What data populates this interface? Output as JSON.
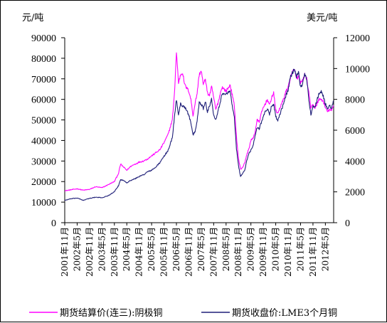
{
  "chart_data": {
    "type": "line",
    "left_axis_unit": "元/吨",
    "right_axis_unit": "美元/吨",
    "y_left": {
      "min": 0,
      "max": 90000,
      "ticks": [
        0,
        10000,
        20000,
        30000,
        40000,
        50000,
        60000,
        70000,
        80000,
        90000
      ]
    },
    "y_right": {
      "min": 0,
      "max": 12000,
      "ticks": [
        0,
        2000,
        4000,
        6000,
        8000,
        10000,
        12000
      ]
    },
    "x_range": [
      "2001-11",
      "2012-09"
    ],
    "x_ticks": [
      "2001年11月",
      "2002年5月",
      "2002年11月",
      "2003年5月",
      "2003年11月",
      "2004年5月",
      "2004年11月",
      "2005年5月",
      "2005年11月",
      "2006年5月",
      "2006年11月",
      "2007年5月",
      "2007年11月",
      "2008年5月",
      "2008年11月",
      "2009年5月",
      "2009年11月",
      "2010年5月",
      "2010年11月",
      "2011年5月",
      "2011年11月",
      "2012年5月"
    ],
    "legend_position": "bottom",
    "grid": false,
    "series": [
      {
        "name": "期货结算价(连三):阴极铜",
        "axis": "left",
        "color": "#ff00ff",
        "points": [
          [
            "2001-11",
            15500
          ],
          [
            "2002-02",
            16000
          ],
          [
            "2002-05",
            16500
          ],
          [
            "2002-08",
            15800
          ],
          [
            "2002-11",
            16200
          ],
          [
            "2003-02",
            17500
          ],
          [
            "2003-05",
            17000
          ],
          [
            "2003-08",
            18500
          ],
          [
            "2003-11",
            20000
          ],
          [
            "2004-01",
            24000
          ],
          [
            "2004-02",
            28500
          ],
          [
            "2004-04",
            26500
          ],
          [
            "2004-05",
            25500
          ],
          [
            "2004-07",
            27500
          ],
          [
            "2004-09",
            28500
          ],
          [
            "2004-11",
            29500
          ],
          [
            "2005-01",
            30000
          ],
          [
            "2005-03",
            31000
          ],
          [
            "2005-05",
            32500
          ],
          [
            "2005-07",
            34000
          ],
          [
            "2005-09",
            35500
          ],
          [
            "2005-11",
            39000
          ],
          [
            "2006-01",
            43000
          ],
          [
            "2006-03",
            50000
          ],
          [
            "2006-04",
            62000
          ],
          [
            "2006-05",
            83000
          ],
          [
            "2006-06",
            68000
          ],
          [
            "2006-07",
            72000
          ],
          [
            "2006-08",
            73000
          ],
          [
            "2006-09",
            67000
          ],
          [
            "2006-11",
            64000
          ],
          [
            "2006-12",
            60000
          ],
          [
            "2007-01",
            52000
          ],
          [
            "2007-02",
            58000
          ],
          [
            "2007-03",
            63000
          ],
          [
            "2007-04",
            72000
          ],
          [
            "2007-05",
            74000
          ],
          [
            "2007-06",
            67000
          ],
          [
            "2007-07",
            70000
          ],
          [
            "2007-08",
            63000
          ],
          [
            "2007-09",
            62000
          ],
          [
            "2007-10",
            66000
          ],
          [
            "2007-11",
            61000
          ],
          [
            "2007-12",
            55000
          ],
          [
            "2008-01",
            58000
          ],
          [
            "2008-03",
            66000
          ],
          [
            "2008-05",
            64000
          ],
          [
            "2008-07",
            67000
          ],
          [
            "2008-08",
            62000
          ],
          [
            "2008-09",
            57000
          ],
          [
            "2008-10",
            42000
          ],
          [
            "2008-11",
            31000
          ],
          [
            "2008-12",
            26000
          ],
          [
            "2009-01",
            27000
          ],
          [
            "2009-02",
            29000
          ],
          [
            "2009-03",
            33000
          ],
          [
            "2009-04",
            36000
          ],
          [
            "2009-05",
            40000
          ],
          [
            "2009-06",
            41000
          ],
          [
            "2009-07",
            44000
          ],
          [
            "2009-08",
            50000
          ],
          [
            "2009-09",
            49000
          ],
          [
            "2009-10",
            53000
          ],
          [
            "2009-11",
            56000
          ],
          [
            "2009-12",
            58000
          ],
          [
            "2010-01",
            60000
          ],
          [
            "2010-02",
            57000
          ],
          [
            "2010-03",
            61000
          ],
          [
            "2010-04",
            63000
          ],
          [
            "2010-05",
            55000
          ],
          [
            "2010-06",
            53000
          ],
          [
            "2010-07",
            56000
          ],
          [
            "2010-08",
            58000
          ],
          [
            "2010-09",
            61000
          ],
          [
            "2010-10",
            64000
          ],
          [
            "2010-11",
            66000
          ],
          [
            "2010-12",
            70000
          ],
          [
            "2011-01",
            73000
          ],
          [
            "2011-02",
            75000
          ],
          [
            "2011-03",
            70000
          ],
          [
            "2011-04",
            71000
          ],
          [
            "2011-05",
            68000
          ],
          [
            "2011-06",
            69000
          ],
          [
            "2011-07",
            72000
          ],
          [
            "2011-08",
            70000
          ],
          [
            "2011-09",
            63000
          ],
          [
            "2011-10",
            56000
          ],
          [
            "2011-11",
            57000
          ],
          [
            "2011-12",
            56000
          ],
          [
            "2012-01",
            58000
          ],
          [
            "2012-02",
            60000
          ],
          [
            "2012-03",
            60000
          ],
          [
            "2012-04",
            59000
          ],
          [
            "2012-05",
            56000
          ],
          [
            "2012-06",
            54000
          ],
          [
            "2012-07",
            55000
          ],
          [
            "2012-08",
            54500
          ],
          [
            "2012-09",
            57000
          ]
        ]
      },
      {
        "name": "期货收盘价:LME3个月铜",
        "axis": "right",
        "color": "#1f1f78",
        "points": [
          [
            "2001-11",
            1450
          ],
          [
            "2002-02",
            1550
          ],
          [
            "2002-05",
            1600
          ],
          [
            "2002-08",
            1450
          ],
          [
            "2002-11",
            1580
          ],
          [
            "2003-02",
            1650
          ],
          [
            "2003-05",
            1620
          ],
          [
            "2003-08",
            1750
          ],
          [
            "2003-11",
            2000
          ],
          [
            "2004-01",
            2400
          ],
          [
            "2004-02",
            2800
          ],
          [
            "2004-04",
            2700
          ],
          [
            "2004-05",
            2600
          ],
          [
            "2004-07",
            2750
          ],
          [
            "2004-09",
            2850
          ],
          [
            "2004-11",
            3000
          ],
          [
            "2005-01",
            3100
          ],
          [
            "2005-03",
            3300
          ],
          [
            "2005-05",
            3400
          ],
          [
            "2005-07",
            3600
          ],
          [
            "2005-09",
            3900
          ],
          [
            "2005-11",
            4300
          ],
          [
            "2006-01",
            4700
          ],
          [
            "2006-03",
            5500
          ],
          [
            "2006-04",
            6800
          ],
          [
            "2006-05",
            8000
          ],
          [
            "2006-06",
            7000
          ],
          [
            "2006-07",
            7700
          ],
          [
            "2006-08",
            7600
          ],
          [
            "2006-09",
            7500
          ],
          [
            "2006-11",
            7000
          ],
          [
            "2006-12",
            6400
          ],
          [
            "2007-01",
            5700
          ],
          [
            "2007-02",
            5900
          ],
          [
            "2007-03",
            6600
          ],
          [
            "2007-04",
            7800
          ],
          [
            "2007-05",
            7700
          ],
          [
            "2007-06",
            7400
          ],
          [
            "2007-07",
            7900
          ],
          [
            "2007-08",
            7200
          ],
          [
            "2007-09",
            7600
          ],
          [
            "2007-10",
            8000
          ],
          [
            "2007-11",
            7000
          ],
          [
            "2007-12",
            6700
          ],
          [
            "2008-01",
            7200
          ],
          [
            "2008-03",
            8300
          ],
          [
            "2008-05",
            8400
          ],
          [
            "2008-07",
            8500
          ],
          [
            "2008-08",
            7600
          ],
          [
            "2008-09",
            6800
          ],
          [
            "2008-10",
            4800
          ],
          [
            "2008-11",
            3700
          ],
          [
            "2008-12",
            3000
          ],
          [
            "2009-01",
            3200
          ],
          [
            "2009-02",
            3400
          ],
          [
            "2009-03",
            4000
          ],
          [
            "2009-04",
            4500
          ],
          [
            "2009-05",
            4700
          ],
          [
            "2009-06",
            5000
          ],
          [
            "2009-07",
            5600
          ],
          [
            "2009-08",
            6200
          ],
          [
            "2009-09",
            6100
          ],
          [
            "2009-10",
            6500
          ],
          [
            "2009-11",
            6900
          ],
          [
            "2009-12",
            7200
          ],
          [
            "2010-01",
            7400
          ],
          [
            "2010-02",
            7000
          ],
          [
            "2010-03",
            7600
          ],
          [
            "2010-04",
            7700
          ],
          [
            "2010-05",
            6900
          ],
          [
            "2010-06",
            6600
          ],
          [
            "2010-07",
            7000
          ],
          [
            "2010-08",
            7400
          ],
          [
            "2010-09",
            7800
          ],
          [
            "2010-10",
            8300
          ],
          [
            "2010-11",
            8600
          ],
          [
            "2010-12",
            9400
          ],
          [
            "2011-01",
            9700
          ],
          [
            "2011-02",
            10000
          ],
          [
            "2011-03",
            9500
          ],
          [
            "2011-04",
            9800
          ],
          [
            "2011-05",
            8800
          ],
          [
            "2011-06",
            9000
          ],
          [
            "2011-07",
            9700
          ],
          [
            "2011-08",
            9300
          ],
          [
            "2011-09",
            8000
          ],
          [
            "2011-10",
            7000
          ],
          [
            "2011-11",
            7600
          ],
          [
            "2011-12",
            7500
          ],
          [
            "2012-01",
            8000
          ],
          [
            "2012-02",
            8400
          ],
          [
            "2012-03",
            8500
          ],
          [
            "2012-04",
            8200
          ],
          [
            "2012-05",
            7700
          ],
          [
            "2012-06",
            7400
          ],
          [
            "2012-07",
            7600
          ],
          [
            "2012-08",
            7400
          ],
          [
            "2012-09",
            7900
          ]
        ]
      }
    ]
  }
}
